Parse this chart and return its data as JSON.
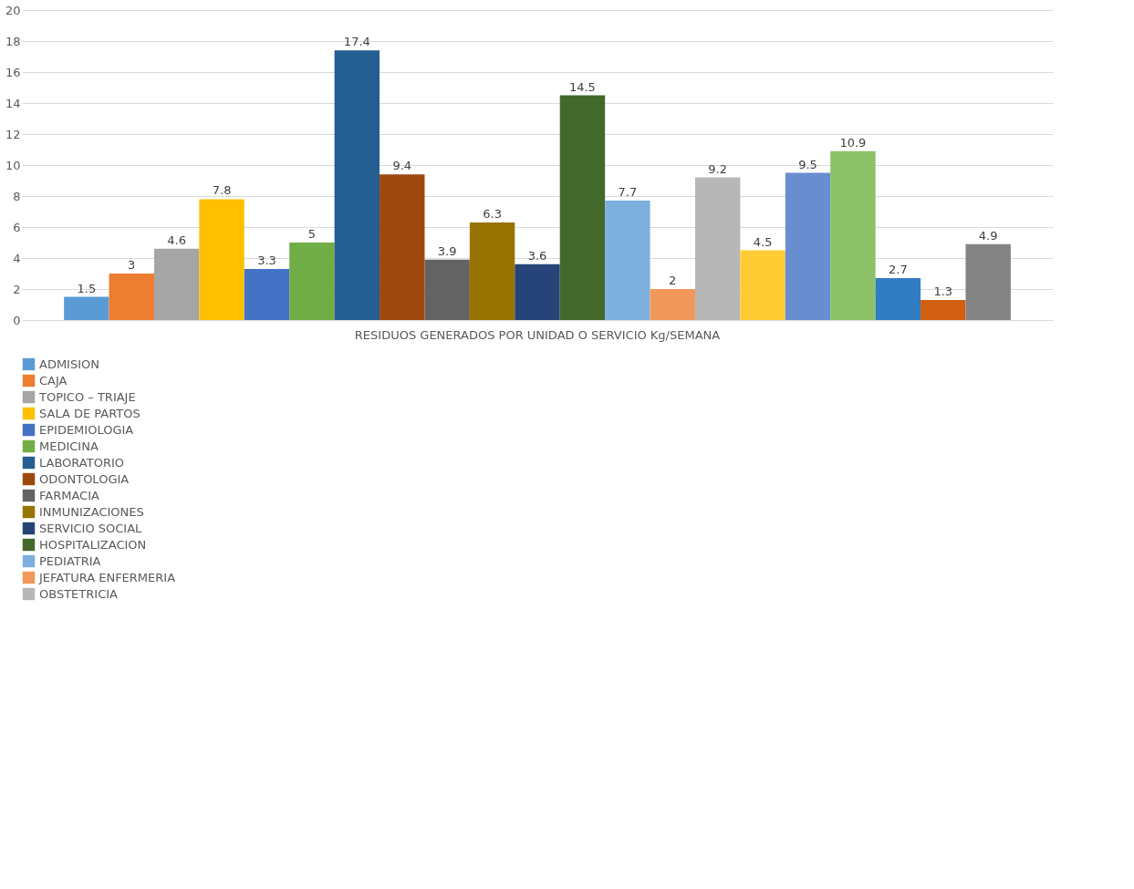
{
  "chart_data": {
    "type": "bar",
    "categories": [
      "RESIDUOS GENERADOS POR UNIDAD O SERVICIO Kg/SEMANA"
    ],
    "ylim": [
      0,
      20
    ],
    "yticks": [
      0,
      2,
      4,
      6,
      8,
      10,
      12,
      14,
      16,
      18,
      20
    ],
    "grid": "y",
    "data_labels": true,
    "legend": "bottom",
    "series": [
      {
        "name": "ADMISION",
        "color": "#5b9bd5",
        "values": [
          1.5
        ]
      },
      {
        "name": "CAJA",
        "color": "#ed7d31",
        "values": [
          3
        ]
      },
      {
        "name": "TOPICO – TRIAJE",
        "color": "#a5a5a5",
        "values": [
          4.6
        ]
      },
      {
        "name": "SALA DE PARTOS",
        "color": "#ffc000",
        "values": [
          7.8
        ]
      },
      {
        "name": "EPIDEMIOLOGIA",
        "color": "#4472c4",
        "values": [
          3.3
        ]
      },
      {
        "name": "MEDICINA",
        "color": "#70ad47",
        "values": [
          5
        ]
      },
      {
        "name": "LABORATORIO",
        "color": "#255e91",
        "values": [
          17.4
        ]
      },
      {
        "name": "ODONTOLOGIA",
        "color": "#9e480e",
        "values": [
          9.4
        ]
      },
      {
        "name": "FARMACIA",
        "color": "#636363",
        "values": [
          3.9
        ]
      },
      {
        "name": "INMUNIZACIONES",
        "color": "#997300",
        "values": [
          6.3
        ]
      },
      {
        "name": "SERVICIO SOCIAL",
        "color": "#264478",
        "values": [
          3.6
        ]
      },
      {
        "name": "HOSPITALIZACION",
        "color": "#43682b",
        "values": [
          14.5
        ]
      },
      {
        "name": "PEDIATRIA",
        "color": "#7cafdd",
        "values": [
          7.7
        ]
      },
      {
        "name": "JEFATURA ENFERMERIA",
        "color": "#f1975a",
        "values": [
          2
        ]
      },
      {
        "name": "OBSTETRICIA",
        "color": "#b7b7b7",
        "values": [
          9.2
        ]
      },
      {
        "color": "#ffcd33",
        "values": [
          4.5
        ]
      },
      {
        "color": "#698ed0",
        "values": [
          9.5
        ]
      },
      {
        "color": "#8cc168",
        "values": [
          10.9
        ]
      },
      {
        "color": "#327dc2",
        "values": [
          2.7
        ]
      },
      {
        "color": "#d26012",
        "values": [
          1.3
        ]
      },
      {
        "color": "#848484",
        "values": [
          4.9
        ]
      }
    ]
  }
}
